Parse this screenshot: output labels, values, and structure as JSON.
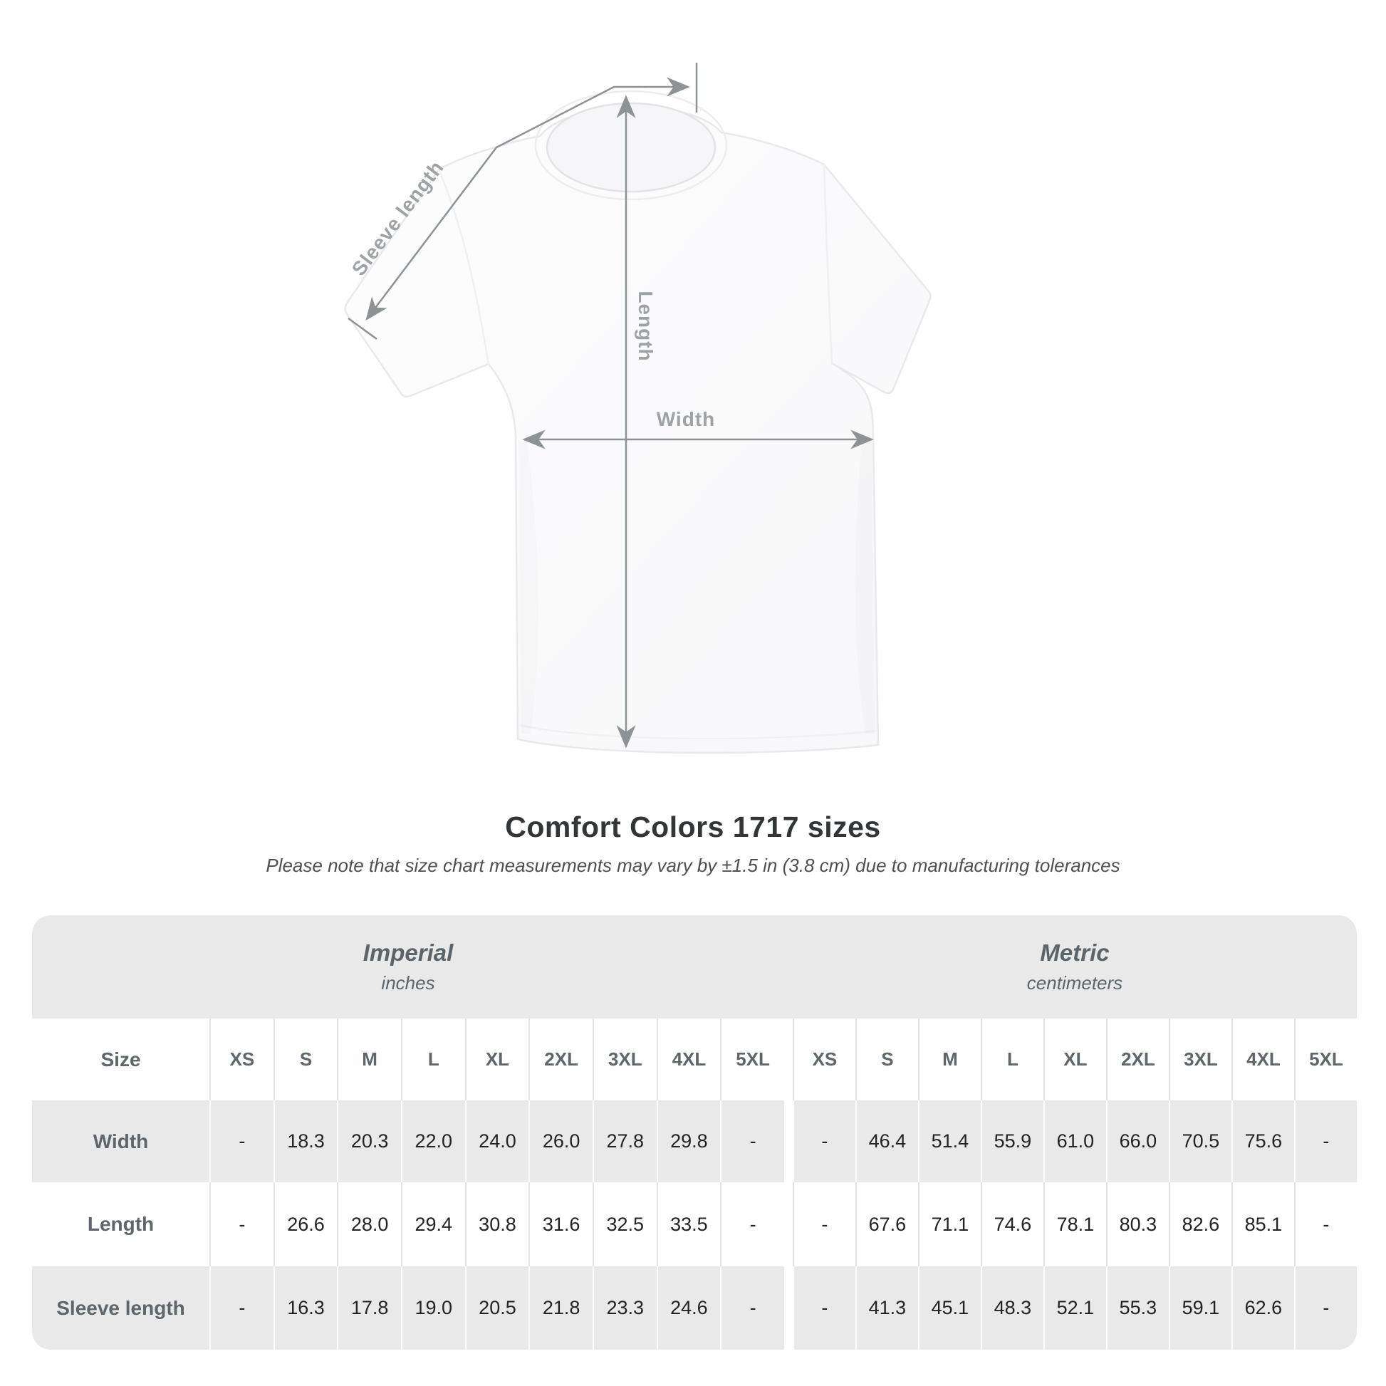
{
  "diagram": {
    "labels": {
      "sleeve_length": "Sleeve length",
      "length": "Length",
      "width": "Width"
    },
    "colors": {
      "line": "#8d9295",
      "label": "#9da2a5",
      "shirt_fill": "#fcfcfd",
      "shirt_outline": "#e9e9ec"
    }
  },
  "title": "Comfort Colors 1717 sizes",
  "subtitle": "Please note that size chart measurements may vary by ±1.5 in (3.8 cm) due to manufacturing tolerances",
  "table": {
    "unit_groups": [
      {
        "name": "Imperial",
        "unit": "inches"
      },
      {
        "name": "Metric",
        "unit": "centimeters"
      }
    ],
    "size_header": "Size",
    "sizes": [
      "XS",
      "S",
      "M",
      "L",
      "XL",
      "2XL",
      "3XL",
      "4XL",
      "5XL"
    ],
    "rows": [
      {
        "label": "Width",
        "imperial": [
          "-",
          "18.3",
          "20.3",
          "22.0",
          "24.0",
          "26.0",
          "27.8",
          "29.8",
          "-"
        ],
        "metric": [
          "-",
          "46.4",
          "51.4",
          "55.9",
          "61.0",
          "66.0",
          "70.5",
          "75.6",
          "-"
        ]
      },
      {
        "label": "Length",
        "imperial": [
          "-",
          "26.6",
          "28.0",
          "29.4",
          "30.8",
          "31.6",
          "32.5",
          "33.5",
          "-"
        ],
        "metric": [
          "-",
          "67.6",
          "71.1",
          "74.6",
          "78.1",
          "80.3",
          "82.6",
          "85.1",
          "-"
        ]
      },
      {
        "label": "Sleeve length",
        "imperial": [
          "-",
          "16.3",
          "17.8",
          "19.0",
          "20.5",
          "21.8",
          "23.3",
          "24.6",
          "-"
        ],
        "metric": [
          "-",
          "41.3",
          "45.1",
          "48.3",
          "52.1",
          "55.3",
          "59.1",
          "62.6",
          "-"
        ]
      }
    ],
    "colors": {
      "band_bg": "#e9e9ea",
      "grey_row_bg": "#e9e9ea",
      "header_text": "#5d666b",
      "value_text": "#212325"
    }
  }
}
